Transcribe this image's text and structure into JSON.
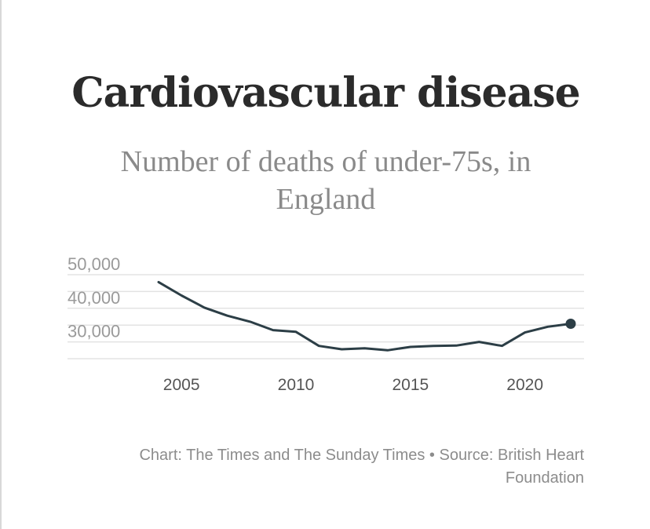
{
  "header": {
    "title": "Cardiovascular disease",
    "subtitle": "Number of deaths of under-75s, in England"
  },
  "chart_data": {
    "type": "line",
    "title": "Cardiovascular disease",
    "subtitle": "Number of deaths of under-75s, in England",
    "xlabel": "",
    "ylabel": "",
    "x": [
      2004,
      2005,
      2006,
      2007,
      2008,
      2009,
      2010,
      2011,
      2012,
      2013,
      2014,
      2015,
      2016,
      2017,
      2018,
      2019,
      2020,
      2021,
      2022
    ],
    "series": [
      {
        "name": "Deaths of under-75s",
        "values": [
          47800,
          43800,
          40200,
          37800,
          36000,
          33500,
          33000,
          28800,
          27800,
          28100,
          27500,
          28500,
          28800,
          28900,
          30000,
          28800,
          32800,
          34500,
          35400
        ],
        "color": "#2c3e46"
      }
    ],
    "xlim": [
      2004,
      2022
    ],
    "ylim": [
      25000,
      50000
    ],
    "yticks": [
      30000,
      40000,
      50000
    ],
    "ytick_labels": [
      "30,000",
      "40,000",
      "50,000"
    ],
    "xticks": [
      2005,
      2010,
      2015,
      2020
    ],
    "xtick_labels": [
      "2005",
      "2010",
      "2015",
      "2020"
    ],
    "grid": true,
    "end_marker": true
  },
  "footer": {
    "credit": "Chart: The Times and The Sunday Times • Source: British Heart Foundation"
  },
  "colors": {
    "line": "#2c3e46",
    "grid": "#e3e3e3",
    "title": "#2b2b2b",
    "subtitle": "#8a8a8a"
  }
}
